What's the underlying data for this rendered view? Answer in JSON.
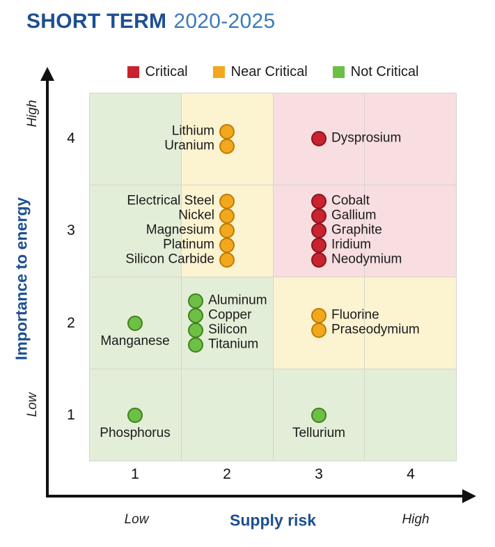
{
  "header": {
    "title": "SHORT TERM",
    "subtitle": "2020-2025"
  },
  "legend": {
    "items": [
      {
        "label": "Critical",
        "color": "#c8232f"
      },
      {
        "label": "Near Critical",
        "color": "#f3a71c"
      },
      {
        "label": "Not Critical",
        "color": "#6dbf45"
      }
    ]
  },
  "axes": {
    "x": {
      "title": "Supply risk",
      "low": "Low",
      "high": "High",
      "ticks": [
        "1",
        "2",
        "3",
        "4"
      ]
    },
    "y": {
      "title": "Importance to energy",
      "low": "Low",
      "high": "High",
      "ticks": [
        "1",
        "2",
        "3",
        "4"
      ]
    }
  },
  "chart_data": {
    "type": "scatter",
    "title": "SHORT TERM 2020-2025",
    "xlabel": "Supply risk",
    "ylabel": "Importance to energy",
    "xlim": [
      0.5,
      4.5
    ],
    "ylim": [
      0.5,
      4.5
    ],
    "legend_position": "top",
    "grid": true,
    "cell_colors": {
      "green": "#e3eed8",
      "yellow": "#fcf3d1",
      "pink": "#f8dee1"
    },
    "grid_cells_top_to_bottom": [
      [
        "green",
        "yellow",
        "pink",
        "pink"
      ],
      [
        "green",
        "yellow",
        "pink",
        "pink"
      ],
      [
        "green",
        "green",
        "yellow",
        "yellow"
      ],
      [
        "green",
        "green",
        "green",
        "green"
      ]
    ],
    "status_colors": {
      "Critical": {
        "fill": "#c8232f",
        "stroke": "#8a1520"
      },
      "Near Critical": {
        "fill": "#f3a71c",
        "stroke": "#bd7c00"
      },
      "Not Critical": {
        "fill": "#6dbf45",
        "stroke": "#41801d"
      }
    },
    "groups": [
      {
        "supply_risk": 2,
        "importance": 4,
        "status": "Near Critical",
        "label_side": "left",
        "materials": [
          "Lithium",
          "Uranium"
        ]
      },
      {
        "supply_risk": 3,
        "importance": 4,
        "status": "Critical",
        "label_side": "right",
        "materials": [
          "Dysprosium"
        ]
      },
      {
        "supply_risk": 2,
        "importance": 3,
        "status": "Near Critical",
        "label_side": "left",
        "materials": [
          "Electrical Steel",
          "Nickel",
          "Magnesium",
          "Platinum",
          "Silicon Carbide"
        ]
      },
      {
        "supply_risk": 3,
        "importance": 3,
        "status": "Critical",
        "label_side": "right",
        "materials": [
          "Cobalt",
          "Gallium",
          "Graphite",
          "Iridium",
          "Neodymium"
        ]
      },
      {
        "supply_risk": 1,
        "importance": 2,
        "status": "Not Critical",
        "label_side": "below",
        "materials": [
          "Manganese"
        ]
      },
      {
        "supply_risk": 2,
        "importance": 2,
        "status": "Not Critical",
        "label_side": "right",
        "dot_dx": -0.34,
        "materials": [
          "Aluminum",
          "Copper",
          "Silicon",
          "Titanium"
        ]
      },
      {
        "supply_risk": 3,
        "importance": 2,
        "status": "Near Critical",
        "label_side": "right",
        "materials": [
          "Fluorine",
          "Praseodymium"
        ]
      },
      {
        "supply_risk": 1,
        "importance": 1,
        "status": "Not Critical",
        "label_side": "below",
        "materials": [
          "Phosphorus"
        ]
      },
      {
        "supply_risk": 3,
        "importance": 1,
        "status": "Not Critical",
        "label_side": "below",
        "materials": [
          "Tellurium"
        ]
      }
    ]
  }
}
